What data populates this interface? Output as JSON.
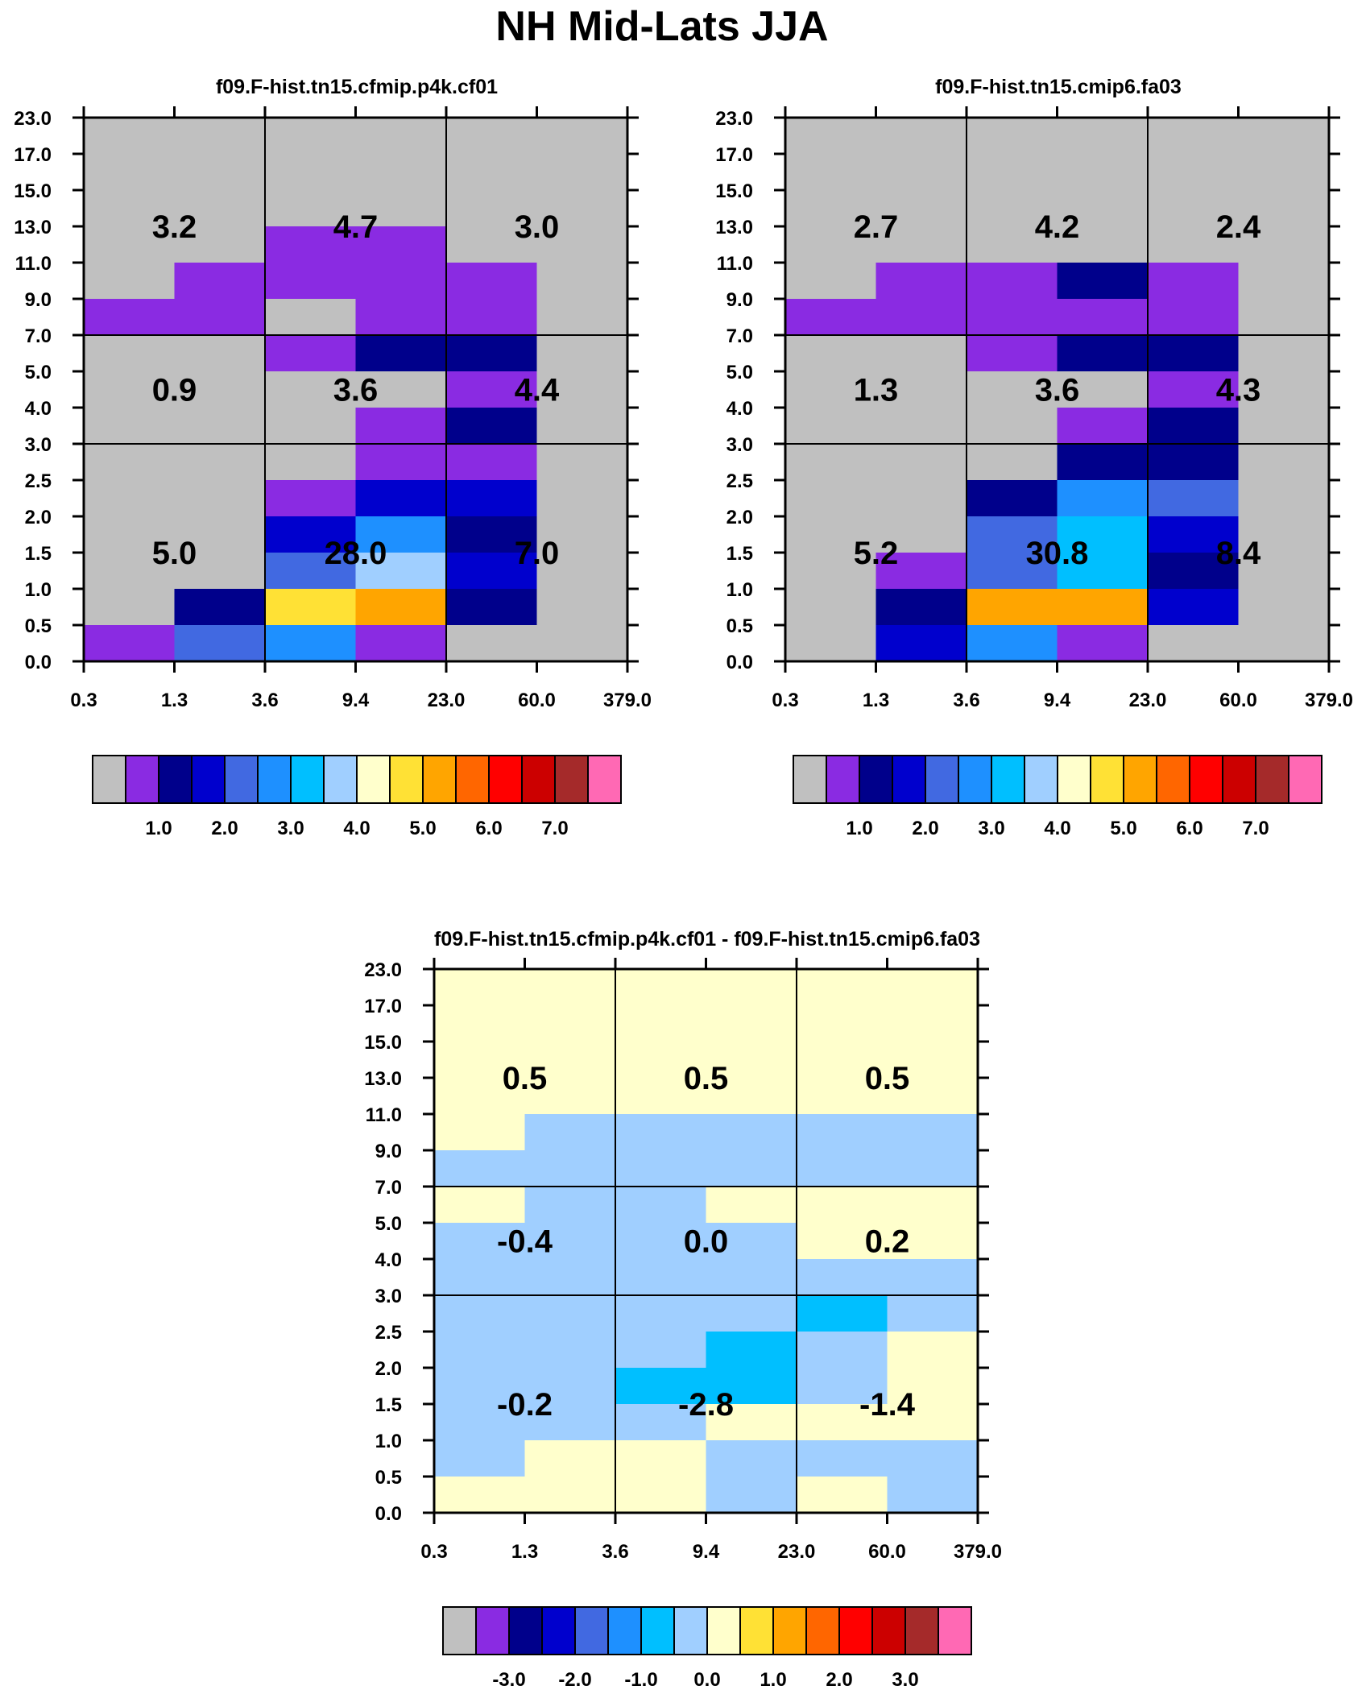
{
  "title": "NH Mid-Lats JJA",
  "chart_data": [
    {
      "type": "heatmap",
      "title": "f09.F-hist.tn15.cfmip.p4k.cf01",
      "xticks": [
        "0.3",
        "1.3",
        "3.6",
        "9.4",
        "23.0",
        "60.0",
        "379.0"
      ],
      "yticks": [
        "0.0",
        "0.5",
        "1.0",
        "1.5",
        "2.0",
        "2.5",
        "3.0",
        "4.0",
        "5.0",
        "7.0",
        "9.0",
        "11.0",
        "13.0",
        "15.0",
        "17.0",
        "23.0"
      ],
      "grid_rows_top_to_bottom": [
        [
          0,
          0,
          0,
          0,
          0,
          0
        ],
        [
          0,
          0,
          0,
          0,
          0,
          0
        ],
        [
          0,
          0,
          0,
          0,
          0,
          0
        ],
        [
          0,
          0,
          1,
          1,
          0,
          0
        ],
        [
          0,
          1,
          1,
          1,
          1,
          0
        ],
        [
          1,
          1,
          0,
          1,
          1,
          0
        ],
        [
          0,
          0,
          1,
          2,
          2,
          0
        ],
        [
          0,
          0,
          0,
          0,
          1,
          0
        ],
        [
          0,
          0,
          0,
          1,
          2,
          0
        ],
        [
          0,
          0,
          0,
          1,
          1,
          0
        ],
        [
          0,
          0,
          1,
          3,
          3,
          0
        ],
        [
          0,
          0,
          3,
          5,
          2,
          0
        ],
        [
          0,
          0,
          4,
          7,
          3,
          0
        ],
        [
          0,
          2,
          9,
          10,
          2,
          0
        ],
        [
          1,
          4,
          5,
          1,
          0,
          0
        ]
      ],
      "region_values": [
        [
          "3.2",
          "4.7",
          "3.0"
        ],
        [
          "0.9",
          "3.6",
          "4.4"
        ],
        [
          "5.0",
          "28.0",
          "7.0"
        ]
      ],
      "colorbar": {
        "colors": [
          "#c0c0c0",
          "#8a2be2",
          "#00008b",
          "#0000cd",
          "#4169e1",
          "#1e90ff",
          "#00bfff",
          "#a0cfff",
          "#ffffcc",
          "#ffe135",
          "#ffa500",
          "#ff6600",
          "#ff0000",
          "#cc0000",
          "#a52a2a",
          "#ff69b4"
        ],
        "labels": [
          "1.0",
          "2.0",
          "3.0",
          "4.0",
          "5.0",
          "6.0",
          "7.0"
        ]
      }
    },
    {
      "type": "heatmap",
      "title": "f09.F-hist.tn15.cmip6.fa03",
      "xticks": [
        "0.3",
        "1.3",
        "3.6",
        "9.4",
        "23.0",
        "60.0",
        "379.0"
      ],
      "yticks": [
        "0.0",
        "0.5",
        "1.0",
        "1.5",
        "2.0",
        "2.5",
        "3.0",
        "4.0",
        "5.0",
        "7.0",
        "9.0",
        "11.0",
        "13.0",
        "15.0",
        "17.0",
        "23.0"
      ],
      "grid_rows_top_to_bottom": [
        [
          0,
          0,
          0,
          0,
          0,
          0
        ],
        [
          0,
          0,
          0,
          0,
          0,
          0
        ],
        [
          0,
          0,
          0,
          0,
          0,
          0
        ],
        [
          0,
          0,
          0,
          0,
          0,
          0
        ],
        [
          0,
          1,
          1,
          2,
          1,
          0
        ],
        [
          1,
          1,
          1,
          1,
          1,
          0
        ],
        [
          0,
          0,
          1,
          2,
          2,
          0
        ],
        [
          0,
          0,
          0,
          0,
          1,
          0
        ],
        [
          0,
          0,
          0,
          1,
          2,
          0
        ],
        [
          0,
          0,
          0,
          2,
          2,
          0
        ],
        [
          0,
          0,
          2,
          5,
          4,
          0
        ],
        [
          0,
          0,
          4,
          6,
          3,
          0
        ],
        [
          0,
          1,
          4,
          6,
          2,
          0
        ],
        [
          0,
          2,
          10,
          10,
          3,
          0
        ],
        [
          0,
          3,
          5,
          1,
          0,
          0
        ]
      ],
      "region_values": [
        [
          "2.7",
          "4.2",
          "2.4"
        ],
        [
          "1.3",
          "3.6",
          "4.3"
        ],
        [
          "5.2",
          "30.8",
          "8.4"
        ]
      ],
      "colorbar": {
        "colors": [
          "#c0c0c0",
          "#8a2be2",
          "#00008b",
          "#0000cd",
          "#4169e1",
          "#1e90ff",
          "#00bfff",
          "#a0cfff",
          "#ffffcc",
          "#ffe135",
          "#ffa500",
          "#ff6600",
          "#ff0000",
          "#cc0000",
          "#a52a2a",
          "#ff69b4"
        ],
        "labels": [
          "1.0",
          "2.0",
          "3.0",
          "4.0",
          "5.0",
          "6.0",
          "7.0"
        ]
      }
    },
    {
      "type": "heatmap",
      "title": "f09.F-hist.tn15.cfmip.p4k.cf01 - f09.F-hist.tn15.cmip6.fa03",
      "xticks": [
        "0.3",
        "1.3",
        "3.6",
        "9.4",
        "23.0",
        "60.0",
        "379.0"
      ],
      "yticks": [
        "0.0",
        "0.5",
        "1.0",
        "1.5",
        "2.0",
        "2.5",
        "3.0",
        "4.0",
        "5.0",
        "7.0",
        "9.0",
        "11.0",
        "13.0",
        "15.0",
        "17.0",
        "23.0"
      ],
      "grid_rows_top_to_bottom": [
        [
          8,
          8,
          8,
          8,
          8,
          8
        ],
        [
          8,
          8,
          8,
          8,
          8,
          8
        ],
        [
          8,
          8,
          8,
          8,
          8,
          8
        ],
        [
          8,
          8,
          8,
          8,
          8,
          8
        ],
        [
          8,
          7,
          7,
          7,
          7,
          7
        ],
        [
          7,
          7,
          7,
          7,
          7,
          7
        ],
        [
          8,
          7,
          7,
          8,
          8,
          8
        ],
        [
          7,
          7,
          7,
          7,
          8,
          8
        ],
        [
          7,
          7,
          7,
          7,
          7,
          7
        ],
        [
          7,
          7,
          7,
          7,
          6,
          7
        ],
        [
          7,
          7,
          7,
          6,
          7,
          8
        ],
        [
          7,
          7,
          6,
          6,
          7,
          8
        ],
        [
          7,
          7,
          7,
          8,
          8,
          8
        ],
        [
          7,
          8,
          8,
          7,
          7,
          7
        ],
        [
          8,
          8,
          8,
          7,
          8,
          7
        ]
      ],
      "region_values": [
        [
          "0.5",
          "0.5",
          "0.5"
        ],
        [
          "-0.4",
          "0.0",
          "0.2"
        ],
        [
          "-0.2",
          "-2.8",
          "-1.4"
        ]
      ],
      "colorbar": {
        "colors": [
          "#c0c0c0",
          "#8a2be2",
          "#00008b",
          "#0000cd",
          "#4169e1",
          "#1e90ff",
          "#00bfff",
          "#a0cfff",
          "#ffffcc",
          "#ffe135",
          "#ffa500",
          "#ff6600",
          "#ff0000",
          "#cc0000",
          "#a52a2a",
          "#ff69b4"
        ],
        "labels": [
          "-3.0",
          "-2.0",
          "-1.0",
          "0.0",
          "1.0",
          "2.0",
          "3.0"
        ]
      }
    }
  ]
}
